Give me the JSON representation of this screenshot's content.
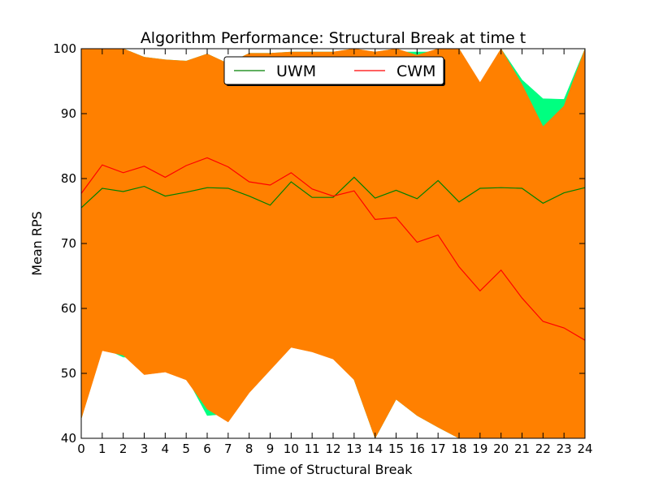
{
  "chart_data": {
    "type": "line",
    "title": "Algorithm Performance: Structural Break at time t",
    "xlabel": "Time of Structural Break",
    "ylabel": "Mean RPS",
    "xlim": [
      0,
      24
    ],
    "ylim": [
      40,
      100
    ],
    "xticks": [
      0,
      1,
      2,
      3,
      4,
      5,
      6,
      7,
      8,
      9,
      10,
      11,
      12,
      13,
      14,
      15,
      16,
      17,
      18,
      19,
      20,
      21,
      22,
      23,
      24
    ],
    "yticks": [
      40,
      50,
      60,
      70,
      80,
      90,
      100
    ],
    "grid": false,
    "legend": {
      "position": "top-center",
      "ncol": 2
    },
    "x": [
      0,
      1,
      2,
      3,
      4,
      5,
      6,
      7,
      8,
      9,
      10,
      11,
      12,
      13,
      14,
      15,
      16,
      17,
      18,
      19,
      20,
      21,
      22,
      23,
      24
    ],
    "series": [
      {
        "name": "UWM",
        "color": "#008000",
        "values": [
          75.5,
          78.5,
          78.0,
          78.8,
          77.3,
          77.9,
          78.6,
          78.5,
          77.3,
          75.9,
          79.5,
          77.1,
          77.1,
          80.2,
          77.0,
          78.2,
          76.9,
          79.7,
          76.4,
          78.5,
          78.6,
          78.5,
          76.2,
          77.8,
          78.6
        ],
        "band_upper": [
          100,
          100,
          100,
          98.7,
          98.3,
          98.1,
          99.2,
          97.7,
          99.3,
          99.3,
          99.5,
          99.5,
          99.5,
          99.5,
          99.5,
          99.5,
          99.5,
          99.5,
          100,
          94.5,
          100,
          95.2,
          92.3,
          92.2,
          100
        ],
        "band_lower": [
          43.0,
          54.0,
          52.5,
          52.5,
          54.0,
          49.5,
          43.5,
          43.8,
          49.3,
          51.0,
          55.2,
          54.5,
          55.5,
          49.0,
          40.0,
          46.0,
          43.5,
          41.7,
          40.0,
          40.0,
          40.0,
          40.0,
          40.0,
          40.0,
          40.0
        ],
        "band_color": "#00ff80"
      },
      {
        "name": "CWM",
        "color": "#ff0000",
        "values": [
          77.7,
          82.1,
          80.9,
          81.9,
          80.2,
          82.0,
          83.2,
          81.8,
          79.5,
          79.0,
          80.9,
          78.4,
          77.3,
          78.1,
          73.7,
          74.0,
          70.2,
          71.3,
          66.4,
          62.7,
          65.9,
          61.6,
          58.0,
          57.0,
          55.1
        ],
        "band_upper": [
          100,
          100,
          100,
          98.7,
          98.3,
          98.1,
          99.2,
          97.7,
          99.3,
          99.3,
          99.5,
          99.5,
          99.5,
          100,
          99.5,
          100,
          99.0,
          100,
          100,
          94.8,
          100,
          94.5,
          88.0,
          91.2,
          100
        ],
        "band_lower": [
          43.0,
          53.5,
          52.8,
          49.8,
          50.2,
          49.0,
          44.5,
          42.5,
          47.0,
          50.5,
          54.0,
          53.3,
          52.2,
          49.0,
          40.0,
          46.0,
          43.5,
          41.7,
          40.0,
          40.0,
          40.0,
          40.0,
          40.0,
          40.0,
          40.0
        ],
        "band_color": "#ff8000"
      }
    ]
  }
}
